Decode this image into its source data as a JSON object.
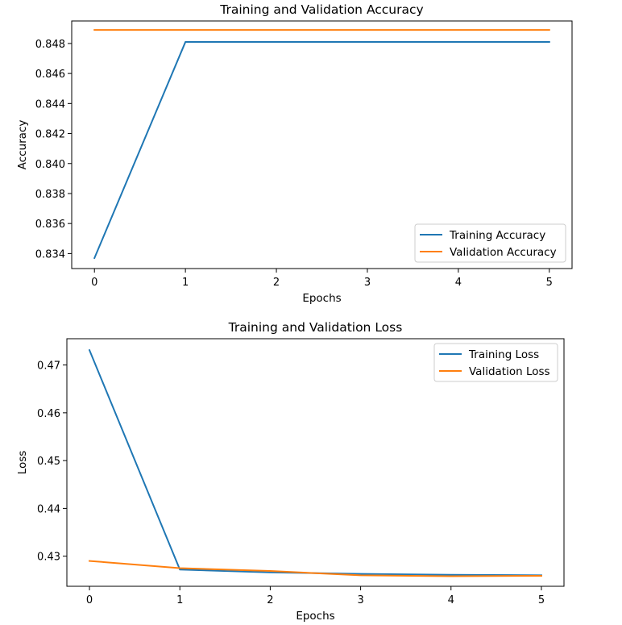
{
  "chart_data": [
    {
      "type": "line",
      "title": "Training and Validation Accuracy",
      "xlabel": "Epochs",
      "ylabel": "Accuracy",
      "x": [
        0,
        1,
        2,
        3,
        4,
        5
      ],
      "xlim": [
        -0.25,
        5.25
      ],
      "ylim": [
        0.833,
        0.8495
      ],
      "xticks": [
        "0",
        "1",
        "2",
        "3",
        "4",
        "5"
      ],
      "yticks": [
        "0.834",
        "0.836",
        "0.838",
        "0.840",
        "0.842",
        "0.844",
        "0.846",
        "0.848"
      ],
      "yticks_values": [
        0.834,
        0.836,
        0.838,
        0.84,
        0.842,
        0.844,
        0.846,
        0.848
      ],
      "legend_position": "lower-right",
      "series": [
        {
          "name": "Training Accuracy",
          "color": "#1f77b4",
          "values": [
            0.8337,
            0.8481,
            0.8481,
            0.8481,
            0.8481,
            0.8481
          ]
        },
        {
          "name": "Validation Accuracy",
          "color": "#ff7f0e",
          "values": [
            0.8489,
            0.8489,
            0.8489,
            0.8489,
            0.8489,
            0.8489
          ]
        }
      ]
    },
    {
      "type": "line",
      "title": "Training and Validation Loss",
      "xlabel": "Epochs",
      "ylabel": "Loss",
      "x": [
        0,
        1,
        2,
        3,
        4,
        5
      ],
      "xlim": [
        -0.25,
        5.25
      ],
      "ylim": [
        0.4237,
        0.4755
      ],
      "xticks": [
        "0",
        "1",
        "2",
        "3",
        "4",
        "5"
      ],
      "yticks": [
        "0.43",
        "0.44",
        "0.45",
        "0.46",
        "0.47"
      ],
      "yticks_values": [
        0.43,
        0.44,
        0.45,
        0.46,
        0.47
      ],
      "legend_position": "upper-right",
      "series": [
        {
          "name": "Training Loss",
          "color": "#1f77b4",
          "values": [
            0.4731,
            0.4272,
            0.4266,
            0.4263,
            0.4261,
            0.426
          ]
        },
        {
          "name": "Validation Loss",
          "color": "#ff7f0e",
          "values": [
            0.429,
            0.4275,
            0.4269,
            0.426,
            0.4258,
            0.4259
          ]
        }
      ]
    }
  ]
}
